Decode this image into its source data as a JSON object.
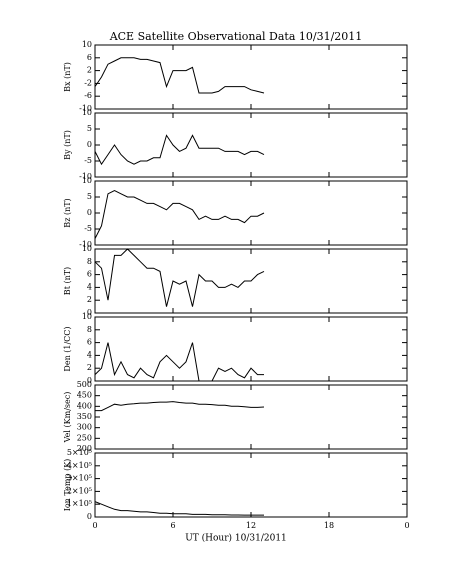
{
  "chart_data": [
    {
      "type": "line",
      "title": "ACE Satellite Observational Data   10/31/2011",
      "ylabel": "Bx (nT)",
      "color": "#000000",
      "x": [
        0,
        0.5,
        1,
        1.5,
        2,
        2.5,
        3,
        3.5,
        4,
        4.5,
        5,
        5.5,
        6,
        6.5,
        7,
        7.5,
        8,
        8.5,
        9,
        9.5,
        10,
        10.5,
        11,
        11.5,
        12,
        12.5,
        13
      ],
      "values": [
        -3,
        0,
        4,
        5,
        6,
        6,
        6,
        5.5,
        5.5,
        5,
        4.5,
        -3,
        2,
        2,
        2,
        3,
        -5,
        -5,
        -5,
        -4.5,
        -3,
        -3,
        -3,
        -3,
        -4,
        -4.5,
        -5
      ],
      "xlim": [
        0,
        24
      ],
      "ylim": [
        -10,
        10
      ],
      "yticks": [
        -10,
        -6,
        -2,
        2,
        6,
        10
      ]
    },
    {
      "type": "line",
      "ylabel": "By (nT)",
      "color": "#000000",
      "x": [
        0,
        0.5,
        1,
        1.5,
        2,
        2.5,
        3,
        3.5,
        4,
        4.5,
        5,
        5.5,
        6,
        6.5,
        7,
        7.5,
        8,
        8.5,
        9,
        9.5,
        10,
        10.5,
        11,
        11.5,
        12,
        12.5,
        13
      ],
      "values": [
        -2,
        -6,
        -3,
        0,
        -3,
        -5,
        -6,
        -5,
        -5,
        -4,
        -4,
        3,
        0,
        -2,
        -1,
        3,
        -1,
        -1,
        -1,
        -1,
        -2,
        -2,
        -2,
        -3,
        -2,
        -2,
        -3
      ],
      "xlim": [
        0,
        24
      ],
      "ylim": [
        -10,
        10
      ],
      "yticks": [
        -10,
        -5,
        0,
        5,
        10
      ]
    },
    {
      "type": "line",
      "ylabel": "Bz (nT)",
      "color": "#000000",
      "x": [
        0,
        0.5,
        1,
        1.5,
        2,
        2.5,
        3,
        3.5,
        4,
        4.5,
        5,
        5.5,
        6,
        6.5,
        7,
        7.5,
        8,
        8.5,
        9,
        9.5,
        10,
        10.5,
        11,
        11.5,
        12,
        12.5,
        13
      ],
      "values": [
        -8,
        -4,
        6,
        7,
        6,
        5,
        5,
        4,
        3,
        3,
        2,
        1,
        3,
        3,
        2,
        1,
        -2,
        -1,
        -2,
        -2,
        -1,
        -2,
        -2,
        -3,
        -1,
        -1,
        0
      ],
      "xlim": [
        0,
        24
      ],
      "ylim": [
        -10,
        10
      ],
      "yticks": [
        -10,
        -5,
        0,
        5,
        10
      ]
    },
    {
      "type": "line",
      "ylabel": "Bt (nT)",
      "color": "#000000",
      "x": [
        0,
        0.5,
        1,
        1.5,
        2,
        2.5,
        3,
        3.5,
        4,
        4.5,
        5,
        5.5,
        6,
        6.5,
        7,
        7.5,
        8,
        8.5,
        9,
        9.5,
        10,
        10.5,
        11,
        11.5,
        12,
        12.5,
        13
      ],
      "values": [
        8,
        7,
        2,
        9,
        9,
        10,
        9,
        8,
        7,
        7,
        6.5,
        1,
        5,
        4.5,
        5,
        1,
        6,
        5,
        5,
        4,
        4,
        4.5,
        4,
        5,
        5,
        6,
        6.5
      ],
      "xlim": [
        0,
        24
      ],
      "ylim": [
        0,
        10
      ],
      "yticks": [
        0,
        2,
        4,
        6,
        8,
        10
      ]
    },
    {
      "type": "line",
      "ylabel": "Den (1/CC)",
      "color": "#000000",
      "x": [
        0,
        0.5,
        1,
        1.5,
        2,
        2.5,
        3,
        3.5,
        4,
        4.5,
        5,
        5.5,
        6,
        6.5,
        7,
        7.5,
        8,
        8.5,
        9,
        9.5,
        10,
        10.5,
        11,
        11.5,
        12,
        12.5,
        13
      ],
      "values": [
        1,
        2,
        6,
        1,
        3,
        1,
        0.5,
        2,
        1,
        0.5,
        3,
        4,
        3,
        2,
        3,
        6,
        0,
        0,
        0,
        2,
        1.5,
        2,
        1,
        0.5,
        2,
        1,
        1
      ],
      "xlim": [
        0,
        24
      ],
      "ylim": [
        0,
        10
      ],
      "yticks": [
        0,
        2,
        4,
        6,
        8,
        10
      ]
    },
    {
      "type": "line",
      "ylabel": "Vel (Km/sec)",
      "color": "#000000",
      "x": [
        0,
        0.5,
        1,
        1.5,
        2,
        2.5,
        3,
        3.5,
        4,
        4.5,
        5,
        5.5,
        6,
        6.5,
        7,
        7.5,
        8,
        8.5,
        9,
        9.5,
        10,
        10.5,
        11,
        11.5,
        12,
        12.5,
        13
      ],
      "values": [
        380,
        380,
        395,
        410,
        405,
        410,
        412,
        415,
        415,
        418,
        420,
        420,
        422,
        418,
        415,
        415,
        410,
        410,
        408,
        405,
        405,
        400,
        400,
        398,
        395,
        395,
        397
      ],
      "xlim": [
        0,
        24
      ],
      "ylim": [
        200,
        500
      ],
      "yticks": [
        200,
        250,
        300,
        350,
        400,
        450,
        500
      ]
    },
    {
      "type": "line",
      "ylabel": "Ion Temp (K)",
      "xlabel": "UT (Hour)  10/31/2011",
      "color": "#000000",
      "x": [
        0,
        0.5,
        1,
        1.5,
        2,
        2.5,
        3,
        3.5,
        4,
        4.5,
        5,
        5.5,
        6,
        6.5,
        7,
        7.5,
        8,
        8.5,
        9,
        9.5,
        10,
        10.5,
        11,
        11.5,
        12,
        12.5,
        13
      ],
      "values": [
        120000,
        100000,
        80000,
        60000,
        50000,
        50000,
        45000,
        40000,
        40000,
        35000,
        30000,
        30000,
        25000,
        25000,
        25000,
        20000,
        20000,
        20000,
        18000,
        18000,
        18000,
        16000,
        16000,
        15000,
        15000,
        15000,
        15000
      ],
      "xlim": [
        0,
        24
      ],
      "xticks": [
        0,
        6,
        12,
        18,
        {
          "value": 24,
          "label": "0"
        }
      ],
      "ylim": [
        0,
        500000
      ],
      "yticks": [
        0,
        {
          "value": 100000,
          "label": "1×10⁵"
        },
        {
          "value": 200000,
          "label": "2×10⁵"
        },
        {
          "value": 300000,
          "label": "3×10⁵"
        },
        {
          "value": 400000,
          "label": "4×10⁵"
        },
        {
          "value": 500000,
          "label": "5×10⁵"
        }
      ]
    }
  ]
}
